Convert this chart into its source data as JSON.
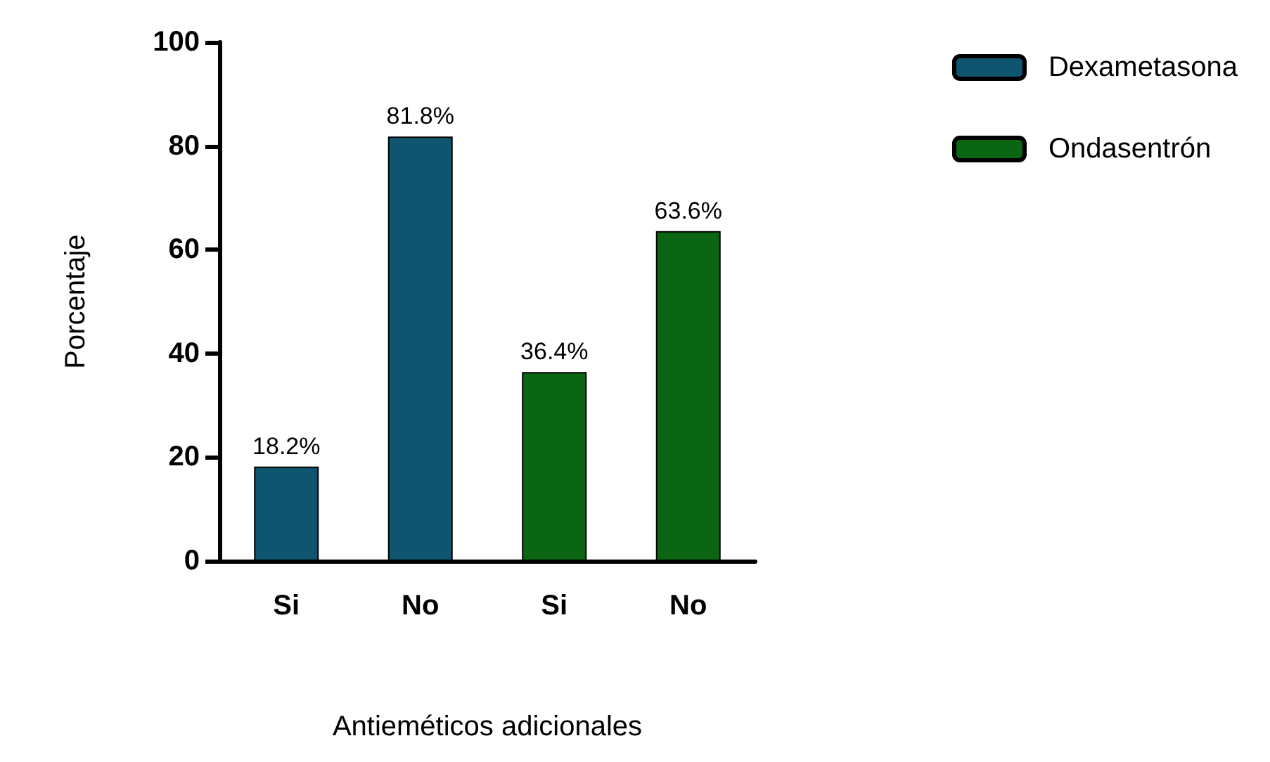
{
  "chart_data": {
    "type": "bar",
    "xlabel": "Antieméticos adicionales",
    "ylabel": "Porcentaje",
    "categories": [
      "Si",
      "No",
      "Si",
      "No"
    ],
    "series": [
      {
        "name": "Dexametasona",
        "color": "#0f5570",
        "values": [
          18.2,
          81.8,
          null,
          null
        ],
        "value_labels": [
          "18.2%",
          "81.8%",
          null,
          null
        ]
      },
      {
        "name": "Ondasentrón",
        "color": "#0b6614",
        "values": [
          null,
          null,
          36.4,
          63.6
        ],
        "value_labels": [
          null,
          null,
          "36.4%",
          "63.6%"
        ]
      }
    ],
    "ylim": [
      0,
      100
    ],
    "yticks": [
      0,
      20,
      40,
      60,
      80,
      100
    ],
    "grid": false,
    "legend": "top right"
  }
}
